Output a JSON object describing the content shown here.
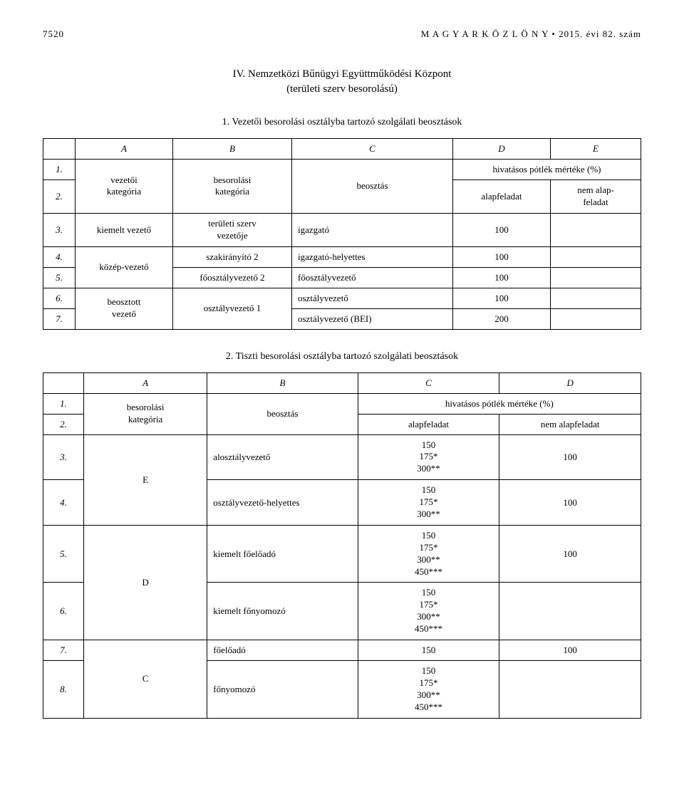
{
  "header": {
    "page_no": "7520",
    "journal": "M A G Y A R   K Ö Z L Ö N Y",
    "issue": "2015. évi 82. szám",
    "bullet": "•"
  },
  "section": {
    "numeral": "IV.",
    "title": "Nemzetközi Bűnügyi Együttműködési Központ",
    "subtitle": "(területi szerv besorolású)"
  },
  "table1": {
    "caption": "1. Vezetői besorolási osztályba tartozó szolgálati beosztások",
    "cols": {
      "A": "A",
      "B": "B",
      "C": "C",
      "D": "D",
      "E": "E"
    },
    "head": {
      "vezetoi": "vezetői\nkategória",
      "besorolasi": "besorolási\nkategória",
      "beosztas": "beosztás",
      "hivatasos": "hivatásos pótlék mértéke (%)",
      "alapfeladat": "alapfeladat",
      "nemalap": "nem alap-\nfeladat"
    },
    "rows": {
      "r1": "1.",
      "r2": "2.",
      "r3": "3.",
      "r4": "4.",
      "r5": "5.",
      "r6": "6.",
      "r7": "7.",
      "kiemelt": "kiemelt vezető",
      "teruleti": "területi szerv\nvezetője",
      "igazgato": "igazgató",
      "v100": "100",
      "kozep": "közép-vezető",
      "szak2": "szakirányító 2",
      "igh": "igazgató-helyettes",
      "foov2": "főosztályvezető 2",
      "foov": "főosztályvezető",
      "beosztott": "beosztott\nvezető",
      "osztv1": "osztályvezető 1",
      "osztv": "osztályvezető",
      "osztvbei": "osztályvezető (BEI)",
      "v200": "200"
    }
  },
  "table2": {
    "caption": "2. Tiszti besorolási osztályba tartozó szolgálati beosztások",
    "cols": {
      "A": "A",
      "B": "B",
      "C": "C",
      "D": "D"
    },
    "head": {
      "besorolasi": "besorolási\nkategória",
      "beosztas": "beosztás",
      "hivatasos": "hivatásos pótlék mértéke (%)",
      "alapfeladat": "alapfeladat",
      "nemalap": "nem alapfeladat"
    },
    "rows": {
      "r1": "1.",
      "r2": "2.",
      "r3": "3.",
      "r4": "4.",
      "r5": "5.",
      "r6": "6.",
      "r7": "7.",
      "r8": "8.",
      "E": "E",
      "D": "D",
      "C": "C",
      "alosztv": "alosztályvezető",
      "osztvh": "osztályvezető-helyettes",
      "kiemeltfe": "kiemelt főelőadó",
      "kiemeltfny": "kiemelt főnyomozó",
      "foeloado": "főelőadó",
      "fonyomozo": "főnyomozó",
      "v150_175_300": "150\n175*\n300**",
      "v150_175_300_450": "150\n175*\n300**\n450***",
      "v150": "150",
      "v100": "100"
    }
  }
}
